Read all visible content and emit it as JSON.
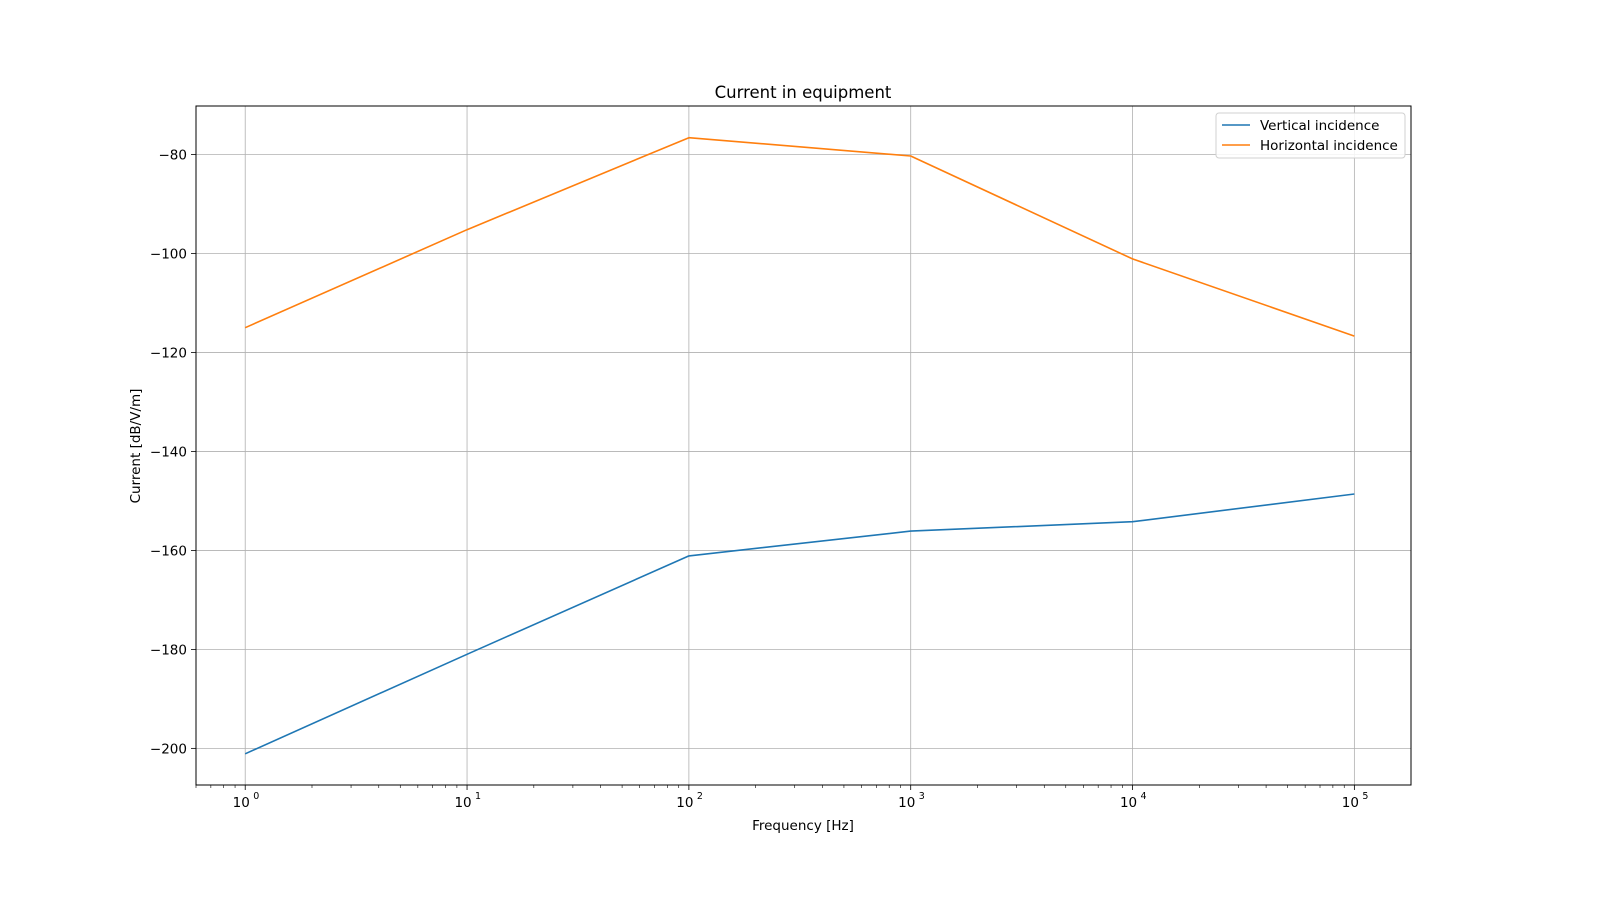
{
  "chart_data": {
    "type": "line",
    "title": "Current in equipment",
    "xlabel": "Frequency [Hz]",
    "ylabel": "Current [dB/V/m]",
    "x_scale": "log",
    "x": [
      1,
      10,
      100,
      1000,
      10000,
      100000
    ],
    "x_tick_labels": [
      {
        "base": "10",
        "exp": "0"
      },
      {
        "base": "10",
        "exp": "1"
      },
      {
        "base": "10",
        "exp": "2"
      },
      {
        "base": "10",
        "exp": "3"
      },
      {
        "base": "10",
        "exp": "4"
      },
      {
        "base": "10",
        "exp": "5"
      }
    ],
    "y_ticks": [
      -80,
      -100,
      -120,
      -140,
      -160,
      -180,
      -200
    ],
    "y_tick_labels": [
      "−80",
      "−100",
      "−120",
      "−140",
      "−160",
      "−180",
      "−200"
    ],
    "xlim": [
      0.6,
      180000
    ],
    "ylim": [
      -207.4,
      -70.2
    ],
    "grid": true,
    "legend_position": "top-right",
    "series": [
      {
        "name": "Vertical incidence",
        "color": "#1f77b4",
        "values": [
          -201.1,
          -181.0,
          -161.1,
          -156.1,
          -154.2,
          -148.6
        ]
      },
      {
        "name": "Horizontal incidence",
        "color": "#ff7f0e",
        "values": [
          -115.0,
          -95.2,
          -76.6,
          -80.3,
          -101.1,
          -116.7
        ]
      }
    ]
  }
}
